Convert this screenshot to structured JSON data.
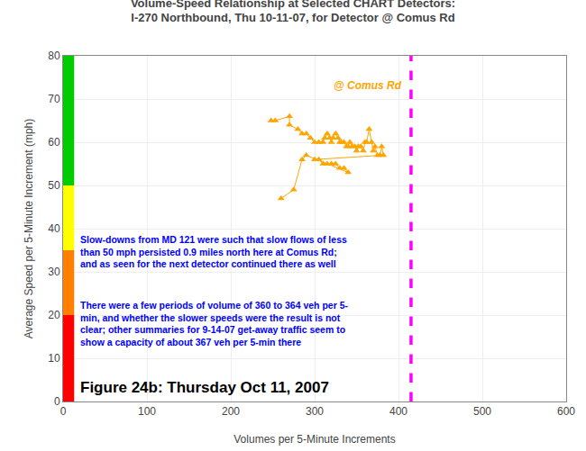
{
  "chart_data": {
    "type": "scatter",
    "title": "Volume-Speed Relationship at Selected CHART Detectors:",
    "subtitle": "I-270 Northbound, Thu 10-11-07, for Detector @ Comus Rd",
    "xlabel": "Volumes per 5-Minute Increments",
    "ylabel": "Average Speed per 5-Minute Increment (mph)",
    "x": [
      248,
      253,
      270,
      270,
      280,
      285,
      290,
      295,
      300,
      305,
      310,
      312,
      315,
      318,
      320,
      322,
      325,
      328,
      330,
      332,
      335,
      338,
      340,
      342,
      345,
      348,
      350,
      352,
      355,
      358,
      360,
      362,
      365,
      368,
      370,
      372,
      375,
      378,
      380,
      382,
      300,
      305,
      310,
      315,
      320,
      325,
      330,
      335,
      340,
      290,
      285,
      275,
      260
    ],
    "values": [
      65,
      65,
      66,
      64,
      63,
      62,
      62,
      61,
      60,
      60,
      60,
      61,
      62,
      61,
      60,
      61,
      62,
      61,
      60,
      60,
      60,
      59,
      59,
      60,
      59,
      59,
      58,
      59,
      59,
      58,
      60,
      60,
      63,
      60,
      58,
      59,
      57,
      57,
      59,
      57,
      56,
      56,
      55,
      55,
      55,
      55,
      54,
      54,
      53,
      57,
      56,
      49,
      47
    ],
    "color": "#FFA500",
    "marker": "triangle-up",
    "line_style": "solid",
    "xlim": [
      0,
      600
    ],
    "ylim": [
      0,
      80
    ],
    "xticks": [
      0,
      100,
      200,
      300,
      400,
      500,
      600
    ],
    "yticks": [
      0,
      10,
      20,
      30,
      40,
      50,
      60,
      70,
      80
    ],
    "grid": true,
    "reference_line": {
      "x": 415,
      "color": "#FF00FF",
      "label": "@ Comus Rd",
      "label_color": "#FFA500"
    },
    "bands": [
      {
        "color": "#00CC00",
        "from": 50,
        "to": 80
      },
      {
        "color": "#FFFF00",
        "from": 35,
        "to": 50
      },
      {
        "color": "#FF8000",
        "from": 20,
        "to": 35
      },
      {
        "color": "#FF0000",
        "from": 0,
        "to": 20
      }
    ],
    "annotations": [
      {
        "text": "Slow-downs from MD 121 were such that slow flows of less\nthan 50 mph persisted 0.9 miles north here at Comus Rd;\nand as seen for the next detector continued there as well",
        "color": "blue"
      },
      {
        "text": "There were a few periods of volume of 360 to 364 veh per 5-\nmin, and whether the slower speeds were the result is not\nclear; other summaries for 9-14-07 get-away traffic seem to\nshow a capacity of about 367 veh per 5-min there",
        "color": "blue"
      }
    ],
    "figure_label": "Figure 24b: Thursday Oct 11, 2007"
  }
}
